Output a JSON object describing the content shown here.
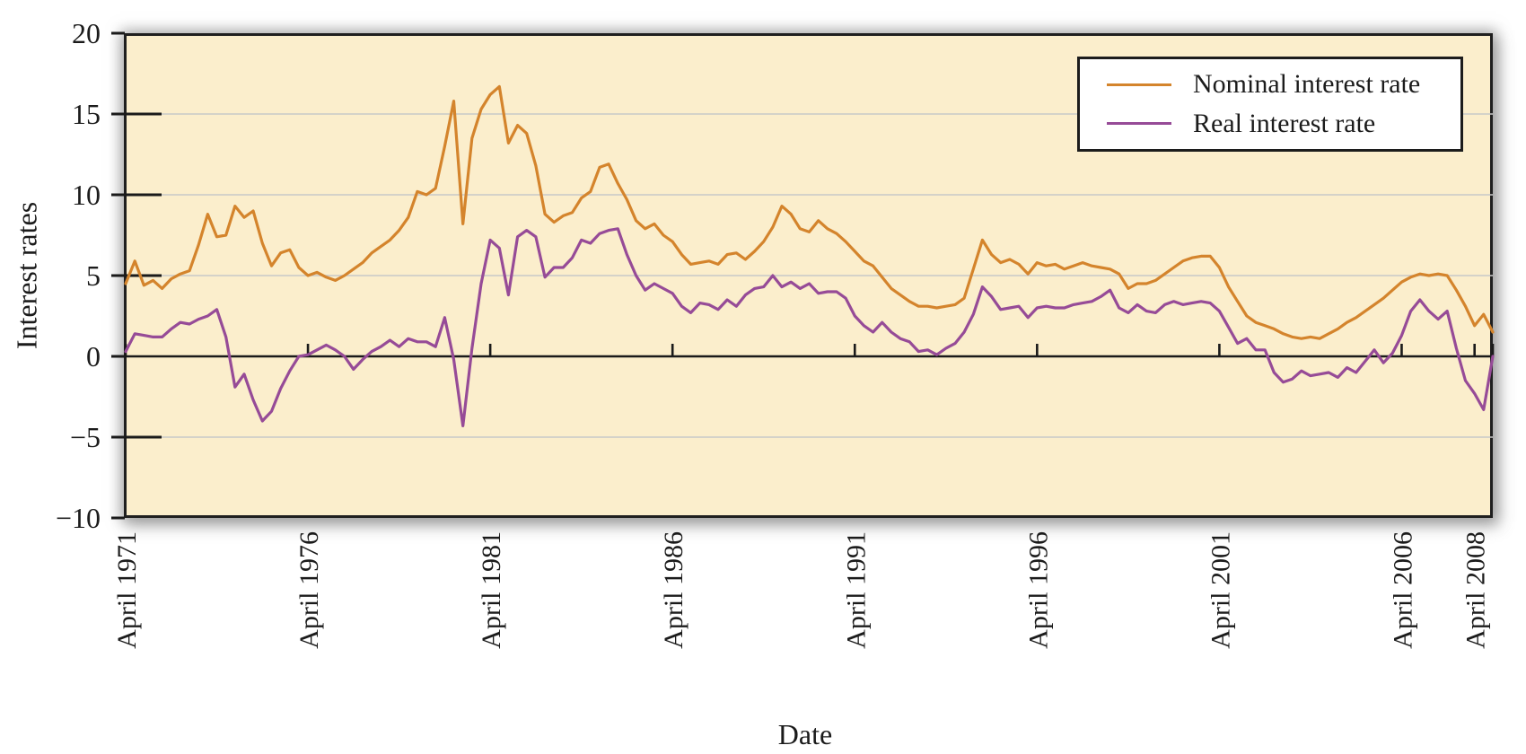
{
  "figure": {
    "y_axis_title": "Interest rates",
    "x_axis_title": "Date"
  },
  "chart_data": {
    "type": "line",
    "title": "",
    "xlabel": "Date",
    "ylabel": "Interest rates",
    "plot_background": "#FBEECC",
    "grid_color": "#C8C8C8",
    "axis_color": "#1a1a1a",
    "grid_on": true,
    "legend_position": "top-right",
    "x_axis": {
      "min": 1971.25,
      "max": 2008.75,
      "tick_years": [
        1971.25,
        1976.25,
        1981.25,
        1986.25,
        1991.25,
        1996.25,
        2001.25,
        2006.25,
        2008.25
      ],
      "tick_labels": [
        "April 1971",
        "April 1976",
        "April 1981",
        "April 1986",
        "April 1991",
        "April 1996",
        "April 2001",
        "April 2006",
        "April 2008"
      ]
    },
    "y_axis": {
      "min": -10,
      "max": 20,
      "ticks": [
        20,
        15,
        10,
        5,
        0,
        -5,
        -10
      ],
      "tick_labels": [
        "20",
        "15",
        "10",
        "5",
        "0",
        "−5",
        "−10"
      ],
      "gridlines": [
        15,
        10,
        5,
        -5
      ],
      "zero_line": 0
    },
    "series": [
      {
        "name": "Nominal interest rate",
        "color": "#D4842C",
        "start_year": 1971.25,
        "step_years": 0.25,
        "values": [
          4.5,
          5.9,
          4.4,
          4.7,
          4.2,
          4.8,
          5.1,
          5.3,
          6.9,
          8.8,
          7.4,
          7.5,
          9.3,
          8.6,
          9.0,
          7.0,
          5.6,
          6.4,
          6.6,
          5.5,
          5.0,
          5.2,
          4.9,
          4.7,
          5.0,
          5.4,
          5.8,
          6.4,
          6.8,
          7.2,
          7.8,
          8.6,
          10.2,
          10.0,
          10.4,
          13.0,
          15.8,
          8.2,
          13.5,
          15.3,
          16.2,
          16.7,
          13.2,
          14.3,
          13.8,
          11.8,
          8.8,
          8.3,
          8.7,
          8.9,
          9.8,
          10.2,
          11.7,
          11.9,
          10.7,
          9.7,
          8.4,
          7.9,
          8.2,
          7.5,
          7.1,
          6.3,
          5.7,
          5.8,
          5.9,
          5.7,
          6.3,
          6.4,
          6.0,
          6.5,
          7.1,
          8.0,
          9.3,
          8.8,
          7.9,
          7.7,
          8.4,
          7.9,
          7.6,
          7.1,
          6.5,
          5.9,
          5.6,
          4.9,
          4.2,
          3.8,
          3.4,
          3.1,
          3.1,
          3.0,
          3.1,
          3.2,
          3.6,
          5.4,
          7.2,
          6.3,
          5.8,
          6.0,
          5.7,
          5.1,
          5.8,
          5.6,
          5.7,
          5.4,
          5.6,
          5.8,
          5.6,
          5.5,
          5.4,
          5.1,
          4.2,
          4.5,
          4.5,
          4.7,
          5.1,
          5.5,
          5.9,
          6.1,
          6.2,
          6.2,
          5.5,
          4.3,
          3.4,
          2.5,
          2.1,
          1.9,
          1.7,
          1.4,
          1.2,
          1.1,
          1.2,
          1.1,
          1.4,
          1.7,
          2.1,
          2.4,
          2.8,
          3.2,
          3.6,
          4.1,
          4.6,
          4.9,
          5.1,
          5.0,
          5.1,
          5.0,
          4.1,
          3.1,
          1.9,
          2.6,
          1.5
        ]
      },
      {
        "name": "Real interest rate",
        "color": "#964B97",
        "start_year": 1971.25,
        "step_years": 0.25,
        "values": [
          0.3,
          1.4,
          1.3,
          1.2,
          1.2,
          1.7,
          2.1,
          2.0,
          2.3,
          2.5,
          2.9,
          1.2,
          -1.9,
          -1.1,
          -2.7,
          -4.0,
          -3.4,
          -2.0,
          -0.9,
          0.0,
          0.1,
          0.4,
          0.7,
          0.4,
          0.0,
          -0.8,
          -0.2,
          0.3,
          0.6,
          1.0,
          0.6,
          1.1,
          0.9,
          0.9,
          0.6,
          2.4,
          -0.2,
          -4.3,
          0.5,
          4.5,
          7.2,
          6.7,
          3.8,
          7.4,
          7.8,
          7.4,
          4.9,
          5.5,
          5.5,
          6.1,
          7.2,
          7.0,
          7.6,
          7.8,
          7.9,
          6.3,
          5.0,
          4.1,
          4.5,
          4.2,
          3.9,
          3.1,
          2.7,
          3.3,
          3.2,
          2.9,
          3.5,
          3.1,
          3.8,
          4.2,
          4.3,
          5.0,
          4.3,
          4.6,
          4.2,
          4.5,
          3.9,
          4.0,
          4.0,
          3.6,
          2.5,
          1.9,
          1.5,
          2.1,
          1.5,
          1.1,
          0.9,
          0.3,
          0.4,
          0.1,
          0.5,
          0.8,
          1.5,
          2.6,
          4.3,
          3.7,
          2.9,
          3.0,
          3.1,
          2.4,
          3.0,
          3.1,
          3.0,
          3.0,
          3.2,
          3.3,
          3.4,
          3.7,
          4.1,
          3.0,
          2.7,
          3.2,
          2.8,
          2.7,
          3.2,
          3.4,
          3.2,
          3.3,
          3.4,
          3.3,
          2.8,
          1.8,
          0.8,
          1.1,
          0.4,
          0.4,
          -1.0,
          -1.6,
          -1.4,
          -0.9,
          -1.2,
          -1.1,
          -1.0,
          -1.3,
          -0.7,
          -1.0,
          -0.3,
          0.4,
          -0.4,
          0.2,
          1.3,
          2.8,
          3.5,
          2.8,
          2.3,
          2.8,
          0.5,
          -1.5,
          -2.3,
          -3.3,
          0.0
        ]
      }
    ]
  }
}
